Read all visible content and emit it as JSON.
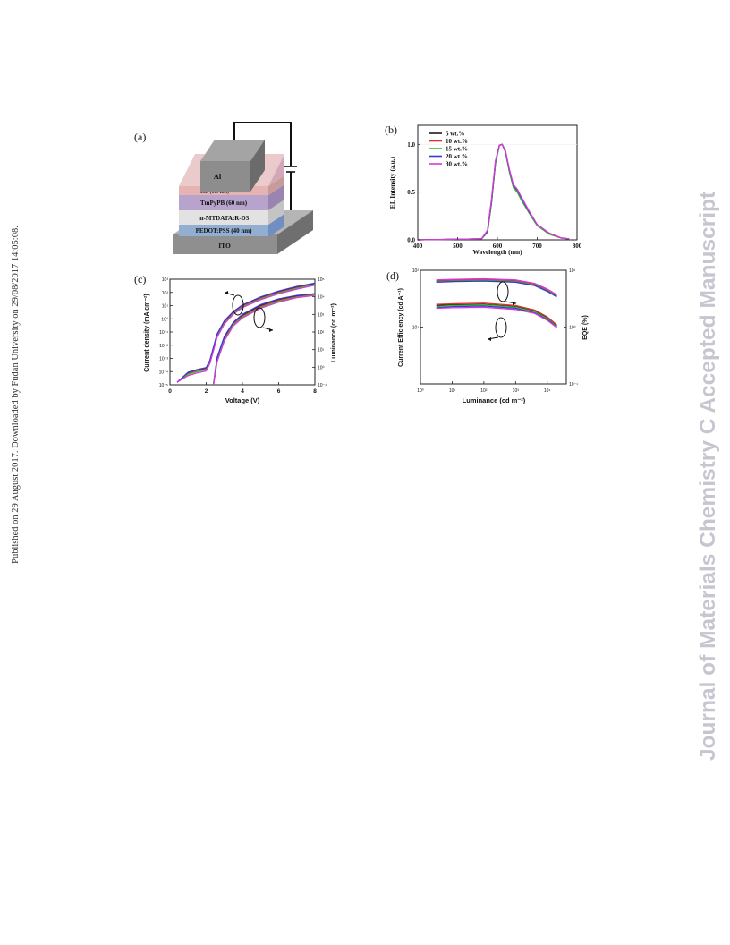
{
  "side_text": {
    "left": "Published on 29 August 2017. Downloaded by Fudan University on 29/08/2017 14:05:08.",
    "right": "Journal of Materials Chemistry C Accepted Manuscript"
  },
  "panels": {
    "a": {
      "label": "(a)",
      "layers": [
        {
          "name": "Al",
          "color": "#8d8d8d"
        },
        {
          "name": "LiF (0.5 nm)",
          "color": "#e6b3b3"
        },
        {
          "name": "TmPyPB (60 nm)",
          "color": "#b8a3cc"
        },
        {
          "name": "m-MTDATA:R-D3",
          "color": "#e2e2e2"
        },
        {
          "name": "PEDOT:PSS (40 nm)",
          "color": "#92afd2"
        },
        {
          "name": "ITO",
          "color": "#8f8f8f"
        }
      ]
    },
    "b": {
      "label": "(b)"
    },
    "c": {
      "label": "(c)"
    },
    "d": {
      "label": "(d)"
    }
  },
  "chart_data": [
    {
      "panel": "b",
      "type": "line",
      "xlabel": "Wavelength (nm)",
      "ylabel": "EL Intensity (a.u.)",
      "xlim": [
        400,
        800
      ],
      "ylim": [
        0,
        1.2
      ],
      "x_ticks": [
        "400",
        "500",
        "600",
        "700",
        "800"
      ],
      "y_ticks": [
        "0.0",
        "0.5",
        "1.0"
      ],
      "legend_position": "top-left",
      "x": [
        400,
        560,
        575,
        585,
        595,
        605,
        612,
        620,
        630,
        640,
        650,
        660,
        680,
        700,
        730,
        760,
        780
      ],
      "series": [
        {
          "name": "5  wt.%",
          "color": "#1a1a1a",
          "values": [
            0,
            0.01,
            0.08,
            0.38,
            0.8,
            0.99,
            1.0,
            0.93,
            0.72,
            0.55,
            0.5,
            0.42,
            0.28,
            0.15,
            0.06,
            0.02,
            0.01
          ]
        },
        {
          "name": "10 wt.%",
          "color": "#e53030",
          "values": [
            0,
            0.01,
            0.08,
            0.39,
            0.81,
            0.99,
            1.0,
            0.93,
            0.72,
            0.56,
            0.51,
            0.43,
            0.29,
            0.15,
            0.06,
            0.02,
            0.01
          ]
        },
        {
          "name": "15 wt.%",
          "color": "#2ec22e",
          "values": [
            0,
            0.01,
            0.08,
            0.38,
            0.8,
            0.99,
            1.0,
            0.92,
            0.71,
            0.55,
            0.5,
            0.42,
            0.28,
            0.15,
            0.06,
            0.02,
            0.01
          ]
        },
        {
          "name": "20 wt.%",
          "color": "#3a3ad0",
          "values": [
            0,
            0.01,
            0.09,
            0.4,
            0.82,
            0.99,
            1.0,
            0.93,
            0.73,
            0.57,
            0.52,
            0.44,
            0.29,
            0.16,
            0.07,
            0.02,
            0.01
          ]
        },
        {
          "name": "30 wt.%",
          "color": "#d83ad8",
          "values": [
            0,
            0.01,
            0.1,
            0.42,
            0.83,
            0.99,
            1.0,
            0.94,
            0.74,
            0.58,
            0.53,
            0.45,
            0.3,
            0.16,
            0.07,
            0.02,
            0.01
          ]
        }
      ]
    },
    {
      "panel": "c",
      "type": "line",
      "xlabel": "Voltage (V)",
      "ylabel": "Current density (mA cm⁻²)",
      "y2label": "Luminance (cd m⁻²)",
      "xlim": [
        0,
        8
      ],
      "x_ticks": [
        "0",
        "2",
        "4",
        "6",
        "8"
      ],
      "y_scale": "log",
      "ylim_log": [
        -5,
        3
      ],
      "y2lim_log": [
        -1,
        5
      ],
      "y_tick_exponents": [
        -5,
        -4,
        -3,
        -2,
        -1,
        0,
        1,
        2,
        3
      ],
      "y2_tick_exponents": [
        -1,
        0,
        1,
        2,
        3,
        4,
        5
      ],
      "current_density": {
        "x": [
          0.4,
          1.0,
          1.5,
          2.0,
          2.2,
          2.6,
          3.0,
          3.5,
          4.0,
          5.0,
          6.0,
          7.0,
          8.0
        ],
        "series": [
          {
            "color": "#1a1a1a",
            "values": [
              -4.8,
              -4.1,
              -3.9,
              -3.75,
              -3.2,
              -1.2,
              -0.2,
              0.5,
              1.0,
              1.6,
              2.05,
              2.4,
              2.65
            ]
          },
          {
            "color": "#e53030",
            "values": [
              -4.8,
              -4.15,
              -3.95,
              -3.8,
              -3.3,
              -1.3,
              -0.3,
              0.45,
              0.95,
              1.55,
              2.0,
              2.35,
              2.6
            ]
          },
          {
            "color": "#2ec22e",
            "values": [
              -4.8,
              -4.2,
              -4.0,
              -3.85,
              -3.35,
              -1.35,
              -0.35,
              0.4,
              0.9,
              1.5,
              1.95,
              2.3,
              2.6
            ]
          },
          {
            "color": "#3a3ad0",
            "values": [
              -4.8,
              -4.05,
              -3.85,
              -3.7,
              -3.15,
              -1.15,
              -0.15,
              0.55,
              1.05,
              1.65,
              2.1,
              2.45,
              2.7
            ]
          },
          {
            "color": "#d83ad8",
            "values": [
              -4.8,
              -4.3,
              -4.1,
              -3.95,
              -3.4,
              -1.4,
              -0.4,
              0.35,
              0.85,
              1.45,
              1.9,
              2.25,
              2.55
            ]
          }
        ]
      },
      "luminance": {
        "x": [
          2.4,
          2.6,
          3.0,
          3.5,
          4.0,
          5.0,
          6.0,
          7.0,
          8.0
        ],
        "series": [
          {
            "color": "#1a1a1a",
            "values": [
              -1.0,
              0.5,
              1.7,
              2.5,
              2.95,
              3.5,
              3.85,
              4.05,
              4.15
            ]
          },
          {
            "color": "#e53030",
            "values": [
              -1.0,
              0.4,
              1.6,
              2.45,
              2.9,
              3.45,
              3.8,
              4.0,
              4.12
            ]
          },
          {
            "color": "#2ec22e",
            "values": [
              -1.0,
              0.35,
              1.55,
              2.4,
              2.85,
              3.4,
              3.75,
              3.98,
              4.1
            ]
          },
          {
            "color": "#3a3ad0",
            "values": [
              -1.0,
              0.55,
              1.75,
              2.55,
              3.0,
              3.55,
              3.88,
              4.08,
              4.18
            ]
          },
          {
            "color": "#d83ad8",
            "values": [
              -1.0,
              0.3,
              1.5,
              2.35,
              2.8,
              3.35,
              3.7,
              3.95,
              4.08
            ]
          }
        ]
      }
    },
    {
      "panel": "d",
      "type": "line",
      "xlabel": "Luminance (cd m⁻²)",
      "ylabel": "Current Efficiency (cd A⁻¹)",
      "y2label": "EQE (%)",
      "x_scale": "log",
      "xlim_log": [
        0,
        4.6
      ],
      "x_tick_exponents": [
        0,
        1,
        2,
        3,
        4
      ],
      "ylim_log": [
        0,
        2
      ],
      "y_tick_exponents": [
        1,
        2
      ],
      "y2lim_log": [
        -1,
        1
      ],
      "y2_tick_exponents": [
        -1,
        0,
        1
      ],
      "eqe": {
        "x": [
          0.5,
          1.0,
          2.0,
          3.0,
          3.6,
          4.0,
          4.3
        ],
        "series": [
          {
            "color": "#1a1a1a",
            "values": [
              0.81,
              0.82,
              0.83,
              0.81,
              0.75,
              0.65,
              0.55
            ]
          },
          {
            "color": "#e53030",
            "values": [
              0.82,
              0.83,
              0.84,
              0.82,
              0.76,
              0.66,
              0.56
            ]
          },
          {
            "color": "#2ec22e",
            "values": [
              0.8,
              0.81,
              0.82,
              0.8,
              0.74,
              0.64,
              0.54
            ]
          },
          {
            "color": "#3a3ad0",
            "values": [
              0.79,
              0.8,
              0.81,
              0.79,
              0.73,
              0.63,
              0.53
            ]
          },
          {
            "color": "#d83ad8",
            "values": [
              0.83,
              0.84,
              0.85,
              0.83,
              0.77,
              0.67,
              0.57
            ]
          }
        ]
      },
      "current_efficiency": {
        "x": [
          0.5,
          1.0,
          2.0,
          3.0,
          3.6,
          4.0,
          4.3
        ],
        "series": [
          {
            "color": "#1a1a1a",
            "values": [
              1.38,
              1.39,
              1.4,
              1.36,
              1.28,
              1.16,
              1.02
            ]
          },
          {
            "color": "#e53030",
            "values": [
              1.4,
              1.41,
              1.42,
              1.38,
              1.3,
              1.18,
              1.04
            ]
          },
          {
            "color": "#2ec22e",
            "values": [
              1.36,
              1.38,
              1.39,
              1.35,
              1.27,
              1.15,
              1.01
            ]
          },
          {
            "color": "#3a3ad0",
            "values": [
              1.34,
              1.36,
              1.37,
              1.33,
              1.25,
              1.13,
              1.0
            ]
          },
          {
            "color": "#d83ad8",
            "values": [
              1.33,
              1.34,
              1.35,
              1.31,
              1.24,
              1.12,
              0.99
            ]
          }
        ]
      }
    }
  ]
}
